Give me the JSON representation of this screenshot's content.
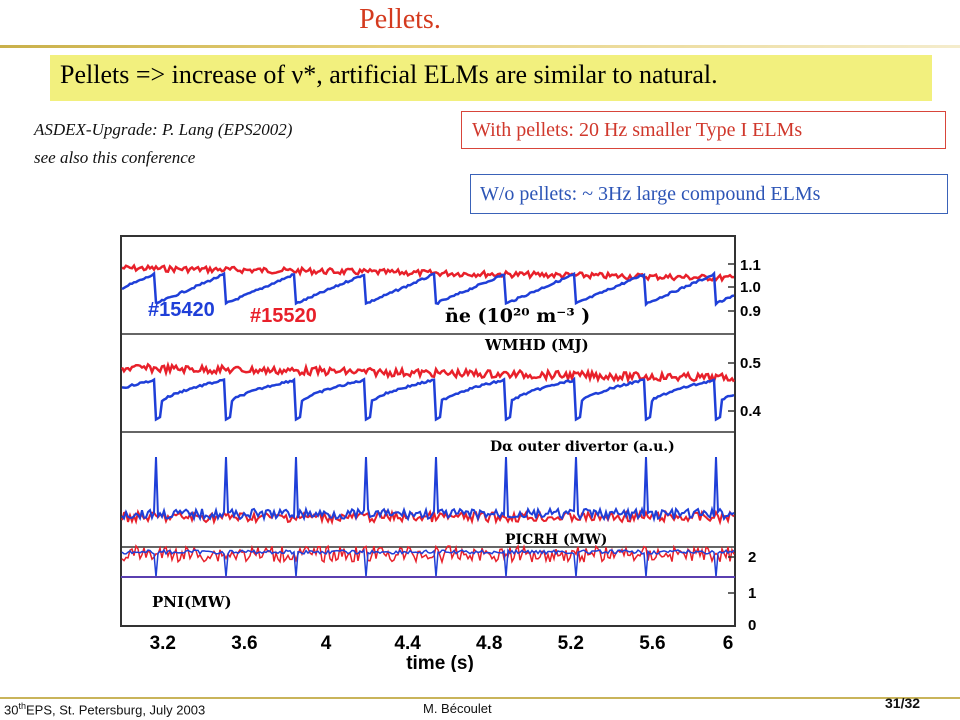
{
  "slide": {
    "title": "Pellets.",
    "headline": "Pellets => increase of ν*, artificial ELMs are similar to natural.",
    "credit_line1": "ASDEX-Upgrade: P. Lang (EPS2002)",
    "credit_line2": "see also this conference",
    "box_with": "With  pellets:  20 Hz smaller Type I ELMs",
    "box_without": "W/o pellets: ~ 3Hz large compound ELMs"
  },
  "figure": {
    "shot_blue": "#15420",
    "shot_red": "#15520",
    "panel_ne_label": "n̄e (10²⁰ m⁻³ )",
    "panel_wmhd_label": "WMHD (MJ)",
    "panel_dalpha_label": "Dα outer divertor (a.u.)",
    "panel_picrh_label": "PICRH (MW)",
    "panel_pni_label": "PNI(MW)",
    "ne_ticks": [
      "1.1",
      "1.0",
      "0.9"
    ],
    "w_ticks": [
      "0.5",
      "0.4"
    ],
    "p_ticks": [
      "2",
      "1",
      "0"
    ],
    "x_ticks": [
      "3.2",
      "3.6",
      "4",
      "4.4",
      "4.8",
      "5.2",
      "5.6",
      "6"
    ],
    "xlabel": "time  (s)",
    "colors": {
      "series_blue": "#1f3fd8",
      "series_red": "#e8202a"
    }
  },
  "footer": {
    "conf_prefix": "30",
    "conf_sup": "th",
    "conf_rest": "EPS, St. Petersburg, July 2003",
    "author": "M. Bécoulet",
    "page": "31/32"
  }
}
